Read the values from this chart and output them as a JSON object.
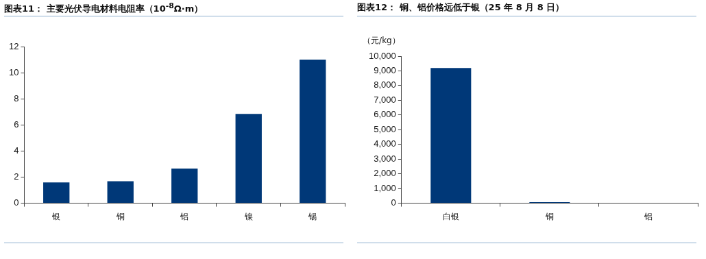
{
  "chart_data": [
    {
      "type": "bar",
      "title": "图表11：  主要光伏导电材料电阻率（10$^{-8}$Ω·m）",
      "categories": [
        "银",
        "铜",
        "铝",
        "镍",
        "锡"
      ],
      "values": [
        1.59,
        1.68,
        2.65,
        6.84,
        11.0
      ],
      "color": "#003878",
      "ylim": [
        0,
        12
      ],
      "yticks": [
        0,
        2,
        4,
        6,
        8,
        10,
        12
      ]
    },
    {
      "type": "bar",
      "title": "图表12：  铜、铝价格远低于银（25 年 8 月 8 日）",
      "ylabel": "（元/kg）",
      "categories": [
        "白银",
        "铜",
        "铝"
      ],
      "values": [
        9200,
        80,
        null
      ],
      "color": "#003878",
      "ylim": [
        0,
        10000
      ],
      "yticks": [
        0,
        {
          "value": 1000,
          "label": "1,000"
        },
        {
          "value": 2000,
          "label": "2,000"
        },
        {
          "value": 3000,
          "label": "3,000"
        },
        {
          "value": 4000,
          "label": "4,000"
        },
        {
          "value": 5000,
          "label": "5,000"
        },
        {
          "value": 6000,
          "label": "6,000"
        },
        {
          "value": 7000,
          "label": "7,000"
        },
        {
          "value": 8000,
          "label": "8,000"
        },
        {
          "value": 9000,
          "label": "9,000"
        },
        {
          "value": 10000,
          "label": "10,000"
        }
      ]
    }
  ]
}
